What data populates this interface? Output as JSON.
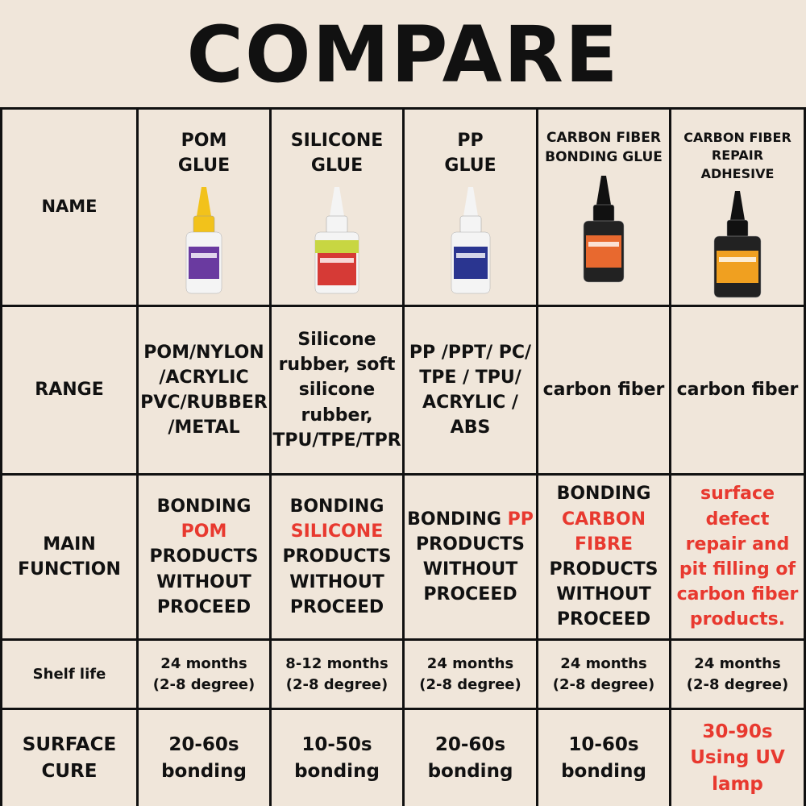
{
  "title": "COMPARE",
  "table": {
    "rows": [
      {
        "label": "NAME",
        "cells": [
          [
            {
              "text": "POM\nGLUE"
            }
          ],
          [
            {
              "text": "SILICONE\nGLUE"
            }
          ],
          [
            {
              "text": "PP\nGLUE"
            }
          ],
          [
            {
              "text": "CARBON FIBER\nBONDING GLUE"
            }
          ],
          [
            {
              "text": "CARBON FIBER\nREPAIR\nADHESIVE"
            }
          ]
        ]
      },
      {
        "label": "RANGE",
        "cells": [
          [
            {
              "text": "POM/NYLON\n/ACRYLIC\nPVC/RUBBER\n/METAL"
            }
          ],
          [
            {
              "text": "Silicone\nrubber, soft\nsilicone\nrubber,\nTPU/TPE/TPR"
            }
          ],
          [
            {
              "text": "PP /PPT/ PC/\nTPE / TPU/\nACRYLIC /\nABS"
            }
          ],
          [
            {
              "text": "carbon fiber"
            }
          ],
          [
            {
              "text": "carbon fiber"
            }
          ]
        ]
      },
      {
        "label": "MAIN\nFUNCTION",
        "cells": [
          [
            {
              "text": "BONDING\n"
            },
            {
              "text": "POM",
              "color": "#e8392f"
            },
            {
              "text": "\nPRODUCTS\nWITHOUT\nPROCEED"
            }
          ],
          [
            {
              "text": "BONDING\n"
            },
            {
              "text": "SILICONE",
              "color": "#e8392f"
            },
            {
              "text": "\nPRODUCTS\nWITHOUT\nPROCEED"
            }
          ],
          [
            {
              "text": "BONDING "
            },
            {
              "text": "PP",
              "color": "#e8392f"
            },
            {
              "text": "\nPRODUCTS\nWITHOUT\nPROCEED"
            }
          ],
          [
            {
              "text": "BONDING\n"
            },
            {
              "text": "CARBON\nFIBRE",
              "color": "#e8392f"
            },
            {
              "text": "\nPRODUCTS\nWITHOUT\nPROCEED"
            }
          ],
          [
            {
              "text": "surface\ndefect\nrepair and\npit filling of\ncarbon fiber\nproducts.",
              "color": "#e8392f"
            }
          ]
        ]
      },
      {
        "label": "Shelf life",
        "cells": [
          [
            {
              "text": "24 months\n(2-8 degree)"
            }
          ],
          [
            {
              "text": "8-12 months\n(2-8 degree)"
            }
          ],
          [
            {
              "text": "24 months\n(2-8 degree)"
            }
          ],
          [
            {
              "text": "24 months\n(2-8 degree)"
            }
          ],
          [
            {
              "text": "24 months\n(2-8 degree)"
            }
          ]
        ]
      },
      {
        "label": "SURFACE\nCURE",
        "cells": [
          [
            {
              "text": "20-60s\nbonding"
            }
          ],
          [
            {
              "text": "10-50s\nbonding"
            }
          ],
          [
            {
              "text": "20-60s\nbonding"
            }
          ],
          [
            {
              "text": "10-60s\nbonding"
            }
          ],
          [
            {
              "text": "30-90s\nUsing UV\nlamp",
              "color": "#e8392f"
            }
          ]
        ]
      }
    ]
  }
}
